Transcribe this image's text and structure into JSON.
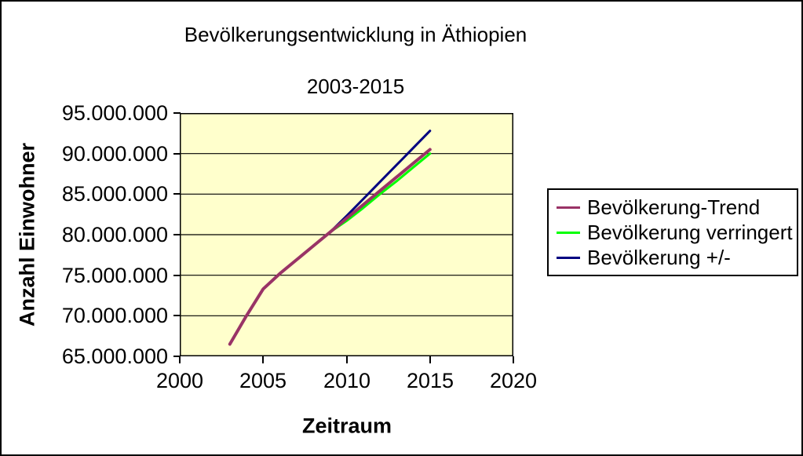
{
  "chart_data": {
    "type": "line",
    "title": "Bevölkerungsentwicklung in Äthiopien",
    "subtitle": "2003-2015",
    "xlabel": "Zeitraum",
    "ylabel": "Anzahl Einwohner",
    "xlim": [
      2000,
      2020
    ],
    "ylim": [
      65000000,
      95000000
    ],
    "grid": "horizontal",
    "plot_bg": "#FFFFCC",
    "legend_position": "right",
    "x": [
      2003,
      2004,
      2005,
      2006,
      2007,
      2008,
      2009,
      2010,
      2011,
      2012,
      2013,
      2014,
      2015
    ],
    "series": [
      {
        "name": "Bevölkerung-Trend",
        "color": "#993366",
        "stroke_width": 4,
        "values": [
          66500000,
          70000000,
          73300000,
          75200000,
          76900000,
          78600000,
          80300000,
          82000000,
          83700000,
          85400000,
          87100000,
          88800000,
          90500000
        ]
      },
      {
        "name": "Bevölkerung verringert",
        "color": "#00FF00",
        "stroke_width": 3,
        "values": [
          null,
          null,
          null,
          null,
          null,
          null,
          80300000,
          81700000,
          83300000,
          85000000,
          86600000,
          88300000,
          90000000
        ]
      },
      {
        "name": "Bevölkerung +/-",
        "color": "#000080",
        "stroke_width": 3,
        "values": [
          null,
          null,
          null,
          null,
          null,
          null,
          80300000,
          82300000,
          84400000,
          86500000,
          88600000,
          90700000,
          92800000
        ]
      }
    ],
    "xticks": [
      "2000",
      "2005",
      "2010",
      "2015",
      "2020"
    ],
    "yticks": [
      "95.000.000",
      "90.000.000",
      "85.000.000",
      "80.000.000",
      "75.000.000",
      "70.000.000",
      "65.000.000"
    ]
  }
}
